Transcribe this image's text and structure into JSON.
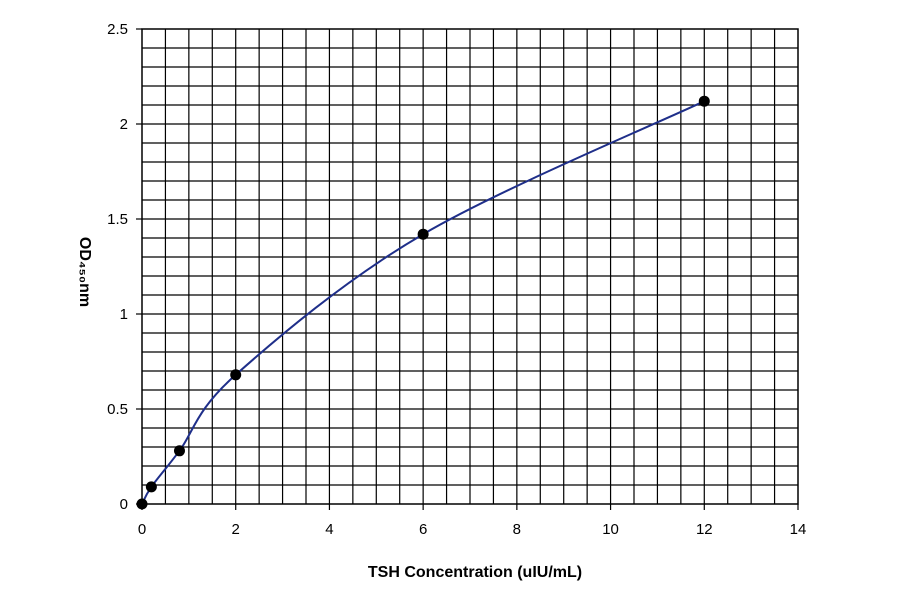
{
  "chart_data": {
    "type": "line",
    "title": "",
    "xlabel": "TSH Concentration (uIU/mL)",
    "ylabel": "OD₄₅₀nm",
    "xlim": [
      0,
      14
    ],
    "ylim": [
      0,
      2.5
    ],
    "xticks": [
      0,
      2,
      4,
      6,
      8,
      10,
      12,
      14
    ],
    "xtick_labels": [
      "0",
      "2",
      "4",
      "6",
      "8",
      "10",
      "12",
      "14"
    ],
    "yticks": [
      0,
      0.5,
      1,
      1.5,
      2,
      2.5
    ],
    "ytick_labels": [
      "0",
      "0.5",
      "1",
      "1.5",
      "2",
      "2.5"
    ],
    "grid": true,
    "series": [
      {
        "x": [
          0,
          0.2,
          0.8,
          2,
          6,
          12
        ],
        "y": [
          0,
          0.09,
          0.28,
          0.68,
          1.42,
          2.12
        ]
      }
    ],
    "colors": {
      "line": "#1f2f8a",
      "marker": "#000000",
      "grid": "#000000",
      "frame": "#000000"
    }
  }
}
